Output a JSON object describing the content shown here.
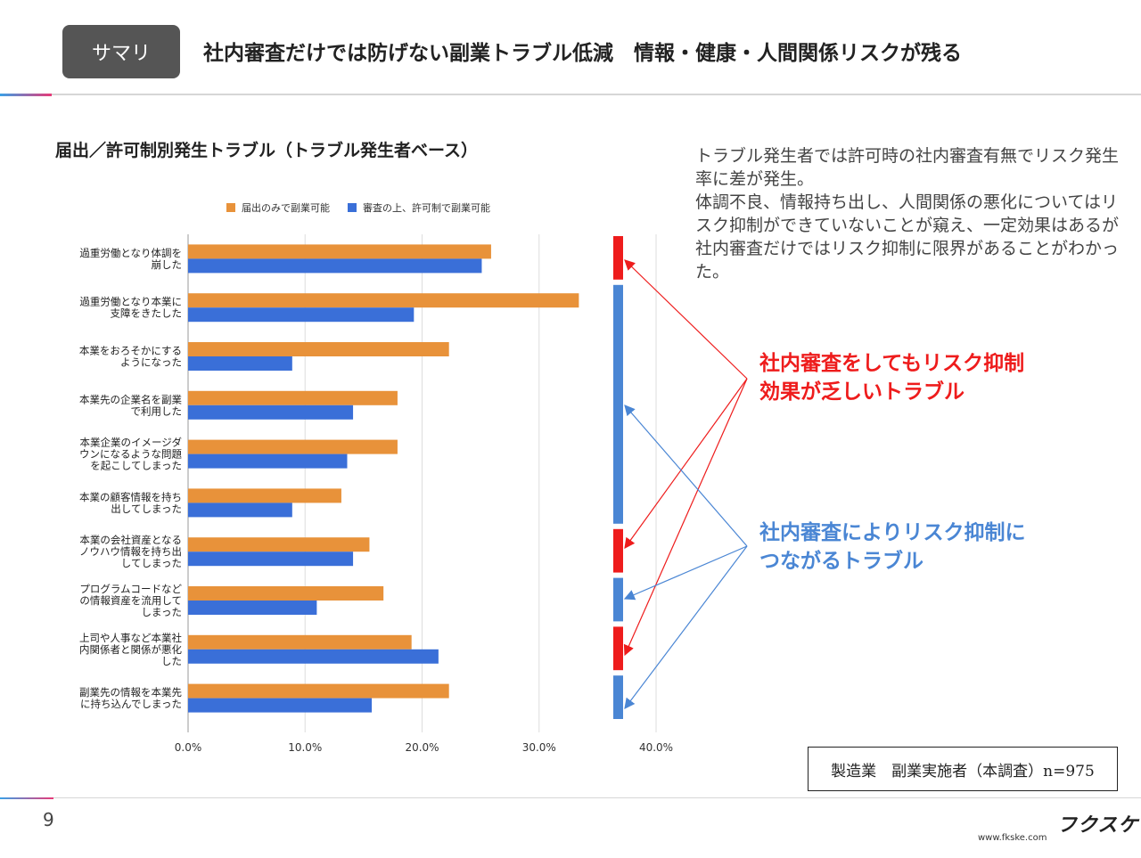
{
  "header": {
    "badge": "サマリ",
    "title": "社内審査だけでは防げない副業トラブル低減　情報・健康・人間関係リスクが残る"
  },
  "chart_heading": "届出／許可制別発生トラブル（トラブル発生者ベース）",
  "note": "トラブル発生者では許可時の社内審査有無でリスク発生率に差が発生。\n体調不良、情報持ち出し、人間関係の悪化についてはリスク抑制ができていないことが窺え、一定効果はあるが社内審査だけではリスク抑制に限界があることがわかった。",
  "callouts": {
    "red": [
      "社内審査をしてもリスク抑制",
      "効果が乏しいトラブル"
    ],
    "blue": [
      "社内審査によりリスク抑制に",
      "つながるトラブル"
    ]
  },
  "sample": "製造業　副業実施者（本調査）n=975",
  "footer": {
    "page_number": "9",
    "logo": "フクスケ",
    "site": "www.fkske.com"
  },
  "colors": {
    "series1": "#e8923a",
    "series2": "#3a6fd8",
    "red": "#ee1c1c",
    "blue": "#4a86d4",
    "badge": "#555555"
  },
  "chart_data": {
    "type": "bar",
    "orientation": "horizontal",
    "categories": [
      [
        "過重労働となり体調を",
        "崩した"
      ],
      [
        "過重労働となり本業に",
        "支障をきたした"
      ],
      [
        "本業をおろそかにする",
        "ようになった"
      ],
      [
        "本業先の企業名を副業",
        "で利用した"
      ],
      [
        "本業企業のイメージダ",
        "ウンになるような問題",
        "を起こしてしまった"
      ],
      [
        "本業の顧客情報を持ち",
        "出してしまった"
      ],
      [
        "本業の会社資産となる",
        "ノウハウ情報を持ち出",
        "してしまった"
      ],
      [
        "プログラムコードなど",
        "の情報資産を流用して",
        "しまった"
      ],
      [
        "上司や人事など本業社",
        "内関係者と関係が悪化",
        "した"
      ],
      [
        "副業先の情報を本業先",
        "に持ち込んでしまった"
      ]
    ],
    "series": [
      {
        "name": "届出のみで副業可能",
        "values": [
          25.9,
          33.4,
          22.3,
          17.9,
          17.9,
          13.1,
          15.5,
          16.7,
          19.1,
          22.3
        ]
      },
      {
        "name": "審査の上、許可制で副業可能",
        "values": [
          25.1,
          19.3,
          8.9,
          14.1,
          13.6,
          8.9,
          14.1,
          11.0,
          21.4,
          15.7
        ]
      }
    ],
    "xlim": [
      0,
      40
    ],
    "xticks": [
      "0.0%",
      "10.0%",
      "20.0%",
      "30.0%",
      "40.0%"
    ],
    "grid": true,
    "legend": "top",
    "markers": [
      "red",
      "blue",
      "blue",
      "blue",
      "blue",
      "blue",
      "red",
      "blue",
      "red",
      "blue"
    ]
  }
}
